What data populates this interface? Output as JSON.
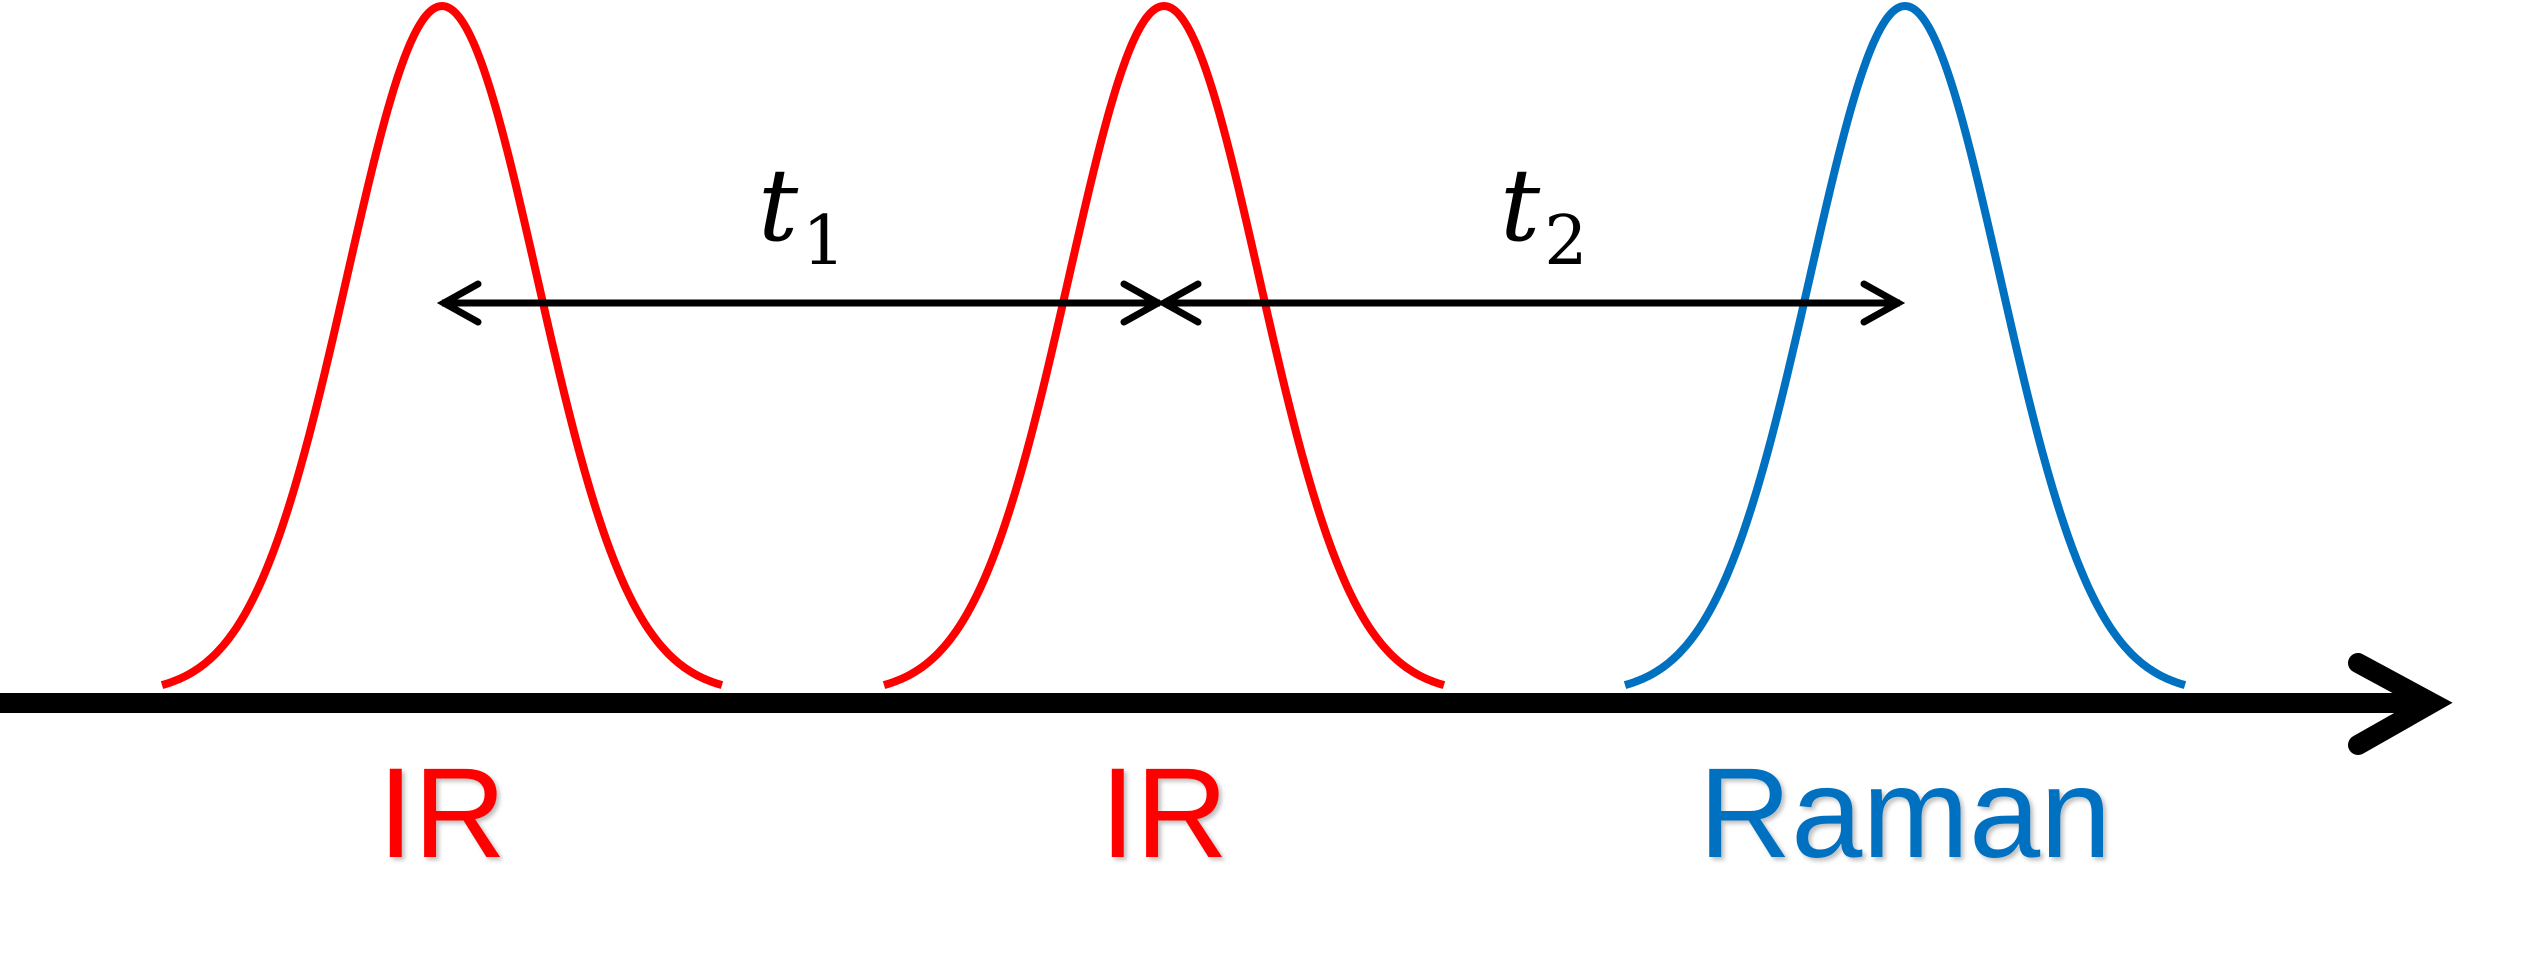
{
  "colors": {
    "ir": "#ff0000",
    "raman": "#0070c0",
    "axis": "#000000",
    "arrow": "#000000"
  },
  "time_axis": {
    "icon": "arrow-right-icon"
  },
  "pulses": [
    {
      "label": "IR",
      "color": "#ff0000"
    },
    {
      "label": "IR",
      "color": "#ff0000"
    },
    {
      "label": "Raman",
      "color": "#0070c0"
    }
  ],
  "delays": [
    {
      "symbol": "t",
      "subscript": "1",
      "from_pulse": 1,
      "to_pulse": 2
    },
    {
      "symbol": "t",
      "subscript": "2",
      "from_pulse": 2,
      "to_pulse": 3
    }
  ]
}
